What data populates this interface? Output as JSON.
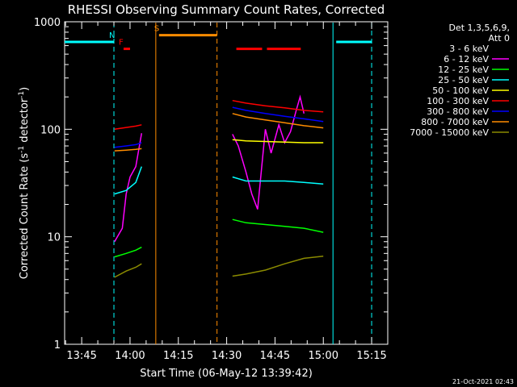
{
  "chart_data": {
    "type": "line",
    "title": "RHESSI Observing Summary Count Rates, Corrected",
    "xlabel": "Start Time (06-May-12 13:39:42)",
    "ylabel": "Corrected Count Rate (s",
    "ylabel_sup1": "-1",
    "ylabel_mid": " detector",
    "ylabel_sup2": "-1",
    "ylabel_end": ")",
    "y_scale": "log",
    "ylim": [
      1,
      1000
    ],
    "xlim": [
      "13:39:42",
      "15:20:00"
    ],
    "x_ticks": [
      "13:45",
      "14:00",
      "14:15",
      "14:30",
      "14:45",
      "15:00",
      "15:15"
    ],
    "y_ticks": [
      "1",
      "10",
      "100",
      "1000"
    ],
    "legend": {
      "placement": "top-right",
      "header1": "Det 1,3,5,6,9,",
      "header2": "Att 0"
    },
    "footer": "21-Oct-2021 02:43",
    "series": [
      {
        "name": "3 - 6 keV",
        "color": "#000000",
        "values": [
          [
            13.92,
            1.0
          ],
          [
            13.94,
            3.0
          ],
          [
            13.96,
            25
          ],
          [
            13.98,
            30
          ],
          [
            14.0,
            40
          ],
          [
            14.03,
            55
          ],
          [
            14.06,
            95
          ],
          [
            14.53,
            110
          ],
          [
            14.56,
            90
          ],
          [
            14.6,
            55
          ],
          [
            14.63,
            35
          ],
          [
            14.66,
            28
          ],
          [
            14.7,
            80
          ],
          [
            14.73,
            65
          ],
          [
            14.77,
            95
          ],
          [
            14.8,
            70
          ],
          [
            14.83,
            95
          ],
          [
            14.86,
            75
          ],
          [
            14.88,
            95
          ],
          [
            14.9,
            100
          ]
        ]
      },
      {
        "name": "6 - 12 keV",
        "color": "#ff00ff",
        "values": [
          [
            13.92,
            9.0
          ],
          [
            13.96,
            12
          ],
          [
            13.98,
            25
          ],
          [
            14.0,
            36
          ],
          [
            14.03,
            45
          ],
          [
            14.06,
            92
          ],
          [
            14.53,
            90
          ],
          [
            14.56,
            70
          ],
          [
            14.6,
            40
          ],
          [
            14.63,
            25
          ],
          [
            14.66,
            18
          ],
          [
            14.7,
            100
          ],
          [
            14.73,
            60
          ],
          [
            14.77,
            110
          ],
          [
            14.8,
            75
          ],
          [
            14.83,
            95
          ],
          [
            14.86,
            150
          ],
          [
            14.88,
            200
          ],
          [
            14.9,
            140
          ]
        ]
      },
      {
        "name": "12 - 25 keV",
        "color": "#00ff00",
        "values": [
          [
            13.92,
            6.5
          ],
          [
            13.98,
            7.0
          ],
          [
            14.03,
            7.5
          ],
          [
            14.06,
            8.0
          ],
          [
            14.53,
            14.5
          ],
          [
            14.6,
            13.5
          ],
          [
            14.7,
            13
          ],
          [
            14.8,
            12.5
          ],
          [
            14.9,
            12.0
          ],
          [
            14.95,
            11.5
          ],
          [
            15.0,
            11.0
          ]
        ]
      },
      {
        "name": "25 - 50 keV",
        "color": "#00ffff",
        "values": [
          [
            13.92,
            25
          ],
          [
            13.98,
            27
          ],
          [
            14.03,
            32
          ],
          [
            14.06,
            45
          ],
          [
            14.53,
            36
          ],
          [
            14.6,
            33
          ],
          [
            14.7,
            33
          ],
          [
            14.8,
            33
          ],
          [
            14.9,
            32
          ],
          [
            15.0,
            31
          ]
        ]
      },
      {
        "name": "50 - 100 keV",
        "color": "#ffff00",
        "values": [
          [
            14.53,
            80
          ],
          [
            14.6,
            78
          ],
          [
            14.7,
            77
          ],
          [
            14.8,
            76
          ],
          [
            14.9,
            75
          ],
          [
            15.0,
            75
          ]
        ]
      },
      {
        "name": "100 - 300 keV",
        "color": "#ff0000",
        "values": [
          [
            13.92,
            100
          ],
          [
            13.98,
            104
          ],
          [
            14.03,
            107
          ],
          [
            14.06,
            110
          ],
          [
            14.53,
            185
          ],
          [
            14.6,
            175
          ],
          [
            14.7,
            165
          ],
          [
            14.8,
            158
          ],
          [
            14.9,
            150
          ],
          [
            15.0,
            145
          ]
        ]
      },
      {
        "name": "300 - 800 keV",
        "color": "#0000ff",
        "values": [
          [
            13.92,
            68
          ],
          [
            13.98,
            70
          ],
          [
            14.03,
            72
          ],
          [
            14.06,
            75
          ],
          [
            14.53,
            160
          ],
          [
            14.6,
            150
          ],
          [
            14.7,
            140
          ],
          [
            14.8,
            132
          ],
          [
            14.9,
            125
          ],
          [
            15.0,
            118
          ]
        ]
      },
      {
        "name": "800 - 7000 keV",
        "color": "#ff8c00",
        "values": [
          [
            13.92,
            63
          ],
          [
            13.98,
            64
          ],
          [
            14.03,
            65
          ],
          [
            14.06,
            66
          ],
          [
            14.53,
            140
          ],
          [
            14.6,
            130
          ],
          [
            14.7,
            122
          ],
          [
            14.8,
            115
          ],
          [
            14.9,
            108
          ],
          [
            15.0,
            103
          ]
        ]
      },
      {
        "name": "7000 - 15000 keV",
        "color": "#8b8b00",
        "values": [
          [
            13.92,
            4.2
          ],
          [
            13.98,
            4.8
          ],
          [
            14.03,
            5.2
          ],
          [
            14.06,
            5.6
          ],
          [
            14.53,
            4.3
          ],
          [
            14.6,
            4.5
          ],
          [
            14.7,
            4.9
          ],
          [
            14.8,
            5.6
          ],
          [
            14.9,
            6.3
          ],
          [
            15.0,
            6.6
          ]
        ]
      }
    ],
    "event_bars": [
      {
        "label": "",
        "color": "#00ffff",
        "from": "13:39:42",
        "to": "13:55:00",
        "y": 650
      },
      {
        "label": "N",
        "color": "#00ffff",
        "from": "13:55:00",
        "to": "13:55:00",
        "y": 650
      },
      {
        "label": "F",
        "color": "#ff0000",
        "from": "13:58:00",
        "to": "14:00:00",
        "y": 560
      },
      {
        "label": "S",
        "color": "#ff8c00",
        "from": "14:09:00",
        "to": "14:27:00",
        "y": 750
      },
      {
        "label": "",
        "color": "#ff0000",
        "from": "14:33:00",
        "to": "14:41:00",
        "y": 560
      },
      {
        "label": "",
        "color": "#ff0000",
        "from": "14:42:30",
        "to": "14:53:00",
        "y": 560
      },
      {
        "label": "",
        "color": "#00ffff",
        "from": "15:04:00",
        "to": "15:15:00",
        "y": 650
      }
    ],
    "marker_lines": [
      {
        "time": "13:55:00",
        "color": "#00ffff",
        "dashed": true
      },
      {
        "time": "14:08:00",
        "color": "#ff8c00",
        "dashed": false
      },
      {
        "time": "14:27:00",
        "color": "#ff8c00",
        "dashed": true
      },
      {
        "time": "15:03:00",
        "color": "#00ffff",
        "dashed": false
      },
      {
        "time": "15:15:00",
        "color": "#00ffff",
        "dashed": true
      }
    ],
    "grid": false
  }
}
